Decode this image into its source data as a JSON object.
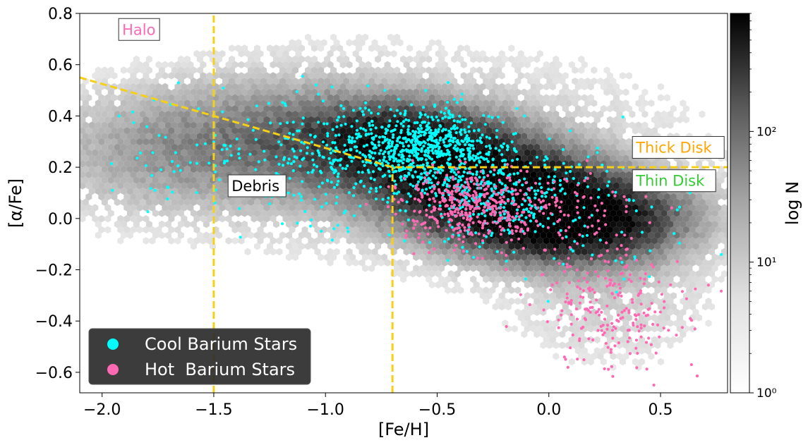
{
  "chart_data": {
    "type": "scatter",
    "xlabel": "[Fe/H]",
    "ylabel": "[α/Fe]",
    "xlim": [
      -2.1,
      0.8
    ],
    "ylim": [
      -0.68,
      0.8
    ],
    "xticks": [
      -2.0,
      -1.5,
      -1.0,
      -0.5,
      0.0,
      0.5
    ],
    "xtick_labels": [
      "−2.0",
      "−1.5",
      "−1.0",
      "−0.5",
      "0.0",
      "0.5"
    ],
    "yticks": [
      0.8,
      0.6,
      0.4,
      0.2,
      0.0,
      -0.2,
      -0.4,
      -0.6
    ],
    "ytick_labels": [
      "0.8",
      "0.6",
      "0.4",
      "0.2",
      "0.0",
      "−0.2",
      "−0.4",
      "−0.6"
    ],
    "grid": false,
    "background": {
      "type": "hexbin_density",
      "colormap": "Greys",
      "scale": "log",
      "colorbar_label": "log N",
      "colorbar_range": [
        1,
        800
      ],
      "colorbar_ticks": [
        1,
        10,
        100
      ],
      "colorbar_tick_labels": [
        "10⁰",
        "10¹",
        "10²"
      ],
      "density_centers": [
        {
          "x": 0.1,
          "y": 0.0,
          "weight": 1.0
        },
        {
          "x": -0.3,
          "y": 0.15,
          "weight": 0.85
        },
        {
          "x": -0.65,
          "y": 0.3,
          "weight": 0.6
        },
        {
          "x": -1.1,
          "y": 0.3,
          "weight": 0.35
        },
        {
          "x": -1.8,
          "y": 0.25,
          "weight": 0.2
        }
      ]
    },
    "series": [
      {
        "name": "Cool Barium Stars",
        "color": "#00ffff",
        "clusters": [
          {
            "x": -0.55,
            "y": 0.27,
            "sx": 0.17,
            "sy": 0.08,
            "n": 700
          },
          {
            "x": -0.25,
            "y": 0.08,
            "sx": 0.18,
            "sy": 0.08,
            "n": 300
          },
          {
            "x": -1.0,
            "y": 0.25,
            "sx": 0.2,
            "sy": 0.12,
            "n": 220
          },
          {
            "x": -1.6,
            "y": 0.25,
            "sx": 0.3,
            "sy": 0.15,
            "n": 70
          },
          {
            "x": 0.2,
            "y": 0.0,
            "sx": 0.3,
            "sy": 0.15,
            "n": 80
          }
        ]
      },
      {
        "name": "Hot  Barium Stars",
        "color": "#ff69b4",
        "clusters": [
          {
            "x": -0.35,
            "y": 0.05,
            "sx": 0.15,
            "sy": 0.07,
            "n": 400
          },
          {
            "x": 0.3,
            "y": -0.35,
            "sx": 0.17,
            "sy": 0.12,
            "n": 220
          },
          {
            "x": 0.05,
            "y": 0.0,
            "sx": 0.2,
            "sy": 0.1,
            "n": 100
          }
        ]
      }
    ],
    "reference_lines": {
      "color": "#f5d016",
      "style": "dashed",
      "paths": [
        [
          [
            -2.1,
            0.55
          ],
          [
            -0.7,
            0.2
          ],
          [
            0.8,
            0.2
          ]
        ],
        [
          [
            -1.5,
            -0.68
          ],
          [
            -1.5,
            0.8
          ]
        ],
        [
          [
            -0.7,
            -0.68
          ],
          [
            -0.7,
            0.2
          ]
        ]
      ]
    },
    "annotations": [
      {
        "text": "Halo",
        "x": -1.91,
        "y": 0.725,
        "color": "#ff69b4"
      },
      {
        "text": "Debris",
        "x": -1.42,
        "y": 0.115,
        "color": "#000000"
      },
      {
        "text": "Thick Disk",
        "x": 0.39,
        "y": 0.265,
        "color": "#ffa500"
      },
      {
        "text": "Thin Disk",
        "x": 0.39,
        "y": 0.135,
        "color": "#33cc33"
      }
    ],
    "legend": {
      "placement": "lower-left",
      "entries": [
        "Cool Barium Stars",
        "Hot  Barium Stars"
      ]
    }
  }
}
